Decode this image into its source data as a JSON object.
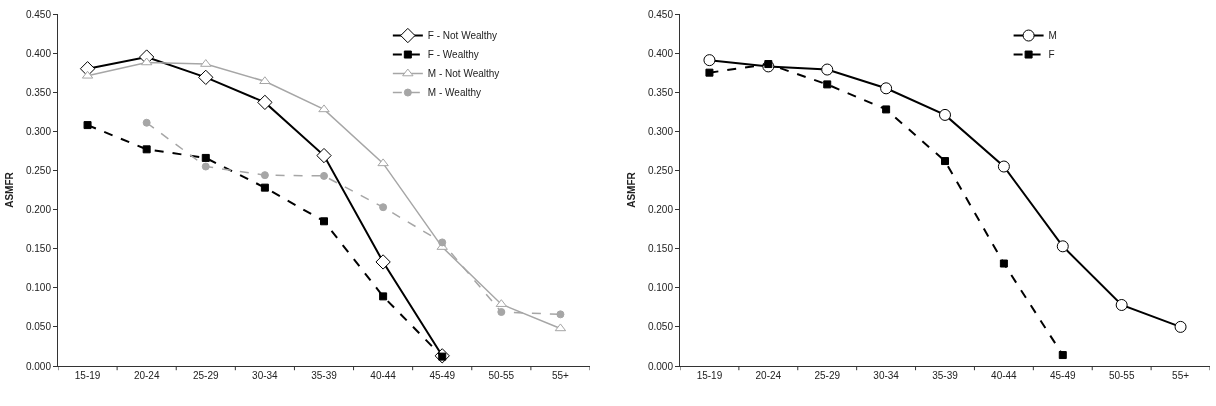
{
  "chart_data": [
    {
      "type": "line",
      "ylabel": "ASMFR",
      "categories": [
        "15-19",
        "20-24",
        "25-29",
        "30-34",
        "35-39",
        "40-44",
        "45-49",
        "50-55",
        "55+"
      ],
      "ylim": [
        0,
        0.45
      ],
      "yticks": [
        {
          "value": 0,
          "label": "0.000"
        },
        {
          "value": 0.05,
          "label": "0.050"
        },
        {
          "value": 0.1,
          "label": "0.100"
        },
        {
          "value": 0.15,
          "label": "0.150"
        },
        {
          "value": 0.2,
          "label": "0.200"
        },
        {
          "value": 0.25,
          "label": "0.250"
        },
        {
          "value": 0.3,
          "label": "0.300"
        },
        {
          "value": 0.35,
          "label": "0.350"
        },
        {
          "value": 0.4,
          "label": "0.400"
        },
        {
          "value": 0.45,
          "label": "0.450"
        }
      ],
      "grid": false,
      "legend": "top right",
      "series": [
        {
          "name": "F - Not Wealthy",
          "color": "#000000",
          "marker": "diamond",
          "line_style": "solid",
          "values": [
            0.38,
            0.395,
            0.369,
            0.337,
            0.269,
            0.133,
            0.013,
            null,
            null
          ]
        },
        {
          "name": "F - Wealthy",
          "color": "#000000",
          "marker": "square",
          "line_style": "dashed",
          "values": [
            0.308,
            0.277,
            0.266,
            0.228,
            0.185,
            0.089,
            0.012,
            null,
            null
          ]
        },
        {
          "name": "M - Not Wealthy",
          "color": "#a6a6a6",
          "marker": "triangle",
          "line_style": "solid",
          "values": [
            0.371,
            0.388,
            0.386,
            0.364,
            0.328,
            0.259,
            0.152,
            0.079,
            0.048
          ]
        },
        {
          "name": "M - Wealthy",
          "color": "#a6a6a6",
          "marker": "circle",
          "line_style": "dashed",
          "values": [
            null,
            0.311,
            0.255,
            0.244,
            0.243,
            0.203,
            0.158,
            0.069,
            0.066
          ]
        }
      ]
    },
    {
      "type": "line",
      "ylabel": "ASMFR",
      "categories": [
        "15-19",
        "20-24",
        "25-29",
        "30-34",
        "35-39",
        "40-44",
        "45-49",
        "50-55",
        "55+"
      ],
      "ylim": [
        0,
        0.45
      ],
      "yticks": [
        {
          "value": 0,
          "label": "0.000"
        },
        {
          "value": 0.05,
          "label": "0.050"
        },
        {
          "value": 0.1,
          "label": "0.100"
        },
        {
          "value": 0.15,
          "label": "0.150"
        },
        {
          "value": 0.2,
          "label": "0.200"
        },
        {
          "value": 0.25,
          "label": "0.250"
        },
        {
          "value": 0.3,
          "label": "0.300"
        },
        {
          "value": 0.35,
          "label": "0.350"
        },
        {
          "value": 0.4,
          "label": "0.400"
        },
        {
          "value": 0.45,
          "label": "0.450"
        }
      ],
      "grid": false,
      "legend": "top right",
      "series": [
        {
          "name": "M",
          "color": "#000000",
          "marker": "circle",
          "line_style": "solid",
          "values": [
            0.391,
            0.383,
            0.379,
            0.355,
            0.321,
            0.255,
            0.153,
            0.078,
            0.05
          ]
        },
        {
          "name": "F",
          "color": "#000000",
          "marker": "square",
          "line_style": "dashed",
          "values": [
            0.375,
            0.386,
            0.36,
            0.328,
            0.262,
            0.131,
            0.014,
            null,
            null
          ]
        }
      ]
    }
  ]
}
